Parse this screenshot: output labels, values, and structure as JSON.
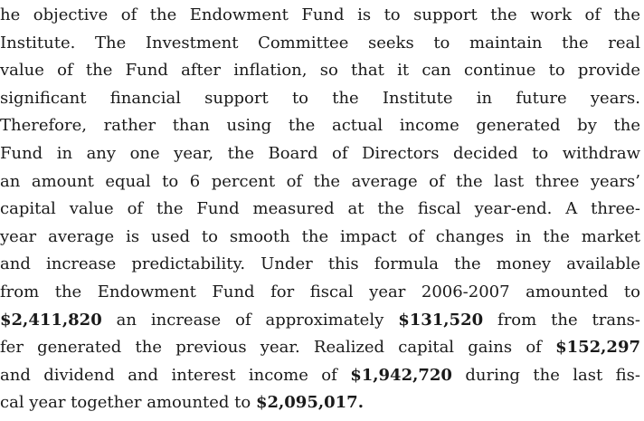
{
  "lines": [
    [
      "he objective of the Endowment Fund is to support the work of the"
    ],
    [
      "Institute. The Investment Committee seeks to maintain the real"
    ],
    [
      "value of the Fund after inflation, so that it can continue to provide"
    ],
    [
      "significant financial support to the Institute in future years."
    ],
    [
      "Therefore, rather than using the actual income generated by the"
    ],
    [
      "Fund in any one year, the Board of Directors decided to withdraw"
    ],
    [
      "an amount equal to 6 percent of the average of the last three years’"
    ],
    [
      "capital value of the Fund measured at the fiscal year-end. A three-"
    ],
    [
      "year average is used to smooth the impact of changes in the market"
    ],
    [
      "and increase predictability. Under this formula the money available"
    ],
    [
      "from the Endowment Fund for fiscal year 2006-2007 amounted to"
    ],
    [
      {
        "text": "$2,411,820",
        "bold": true
      },
      " an increase of approximately ",
      {
        "text": "$131,520",
        "bold": true
      },
      " from the trans-"
    ],
    [
      "fer generated the previous year. Realized capital gains of ",
      {
        "text": "$152,297",
        "bold": true
      }
    ],
    [
      "and dividend and interest income of ",
      {
        "text": "$1,942,720",
        "bold": true
      },
      " during the last fis-"
    ],
    [
      "cal year together amounted to ",
      {
        "text": "$2,095,017.",
        "bold": true
      }
    ]
  ]
}
